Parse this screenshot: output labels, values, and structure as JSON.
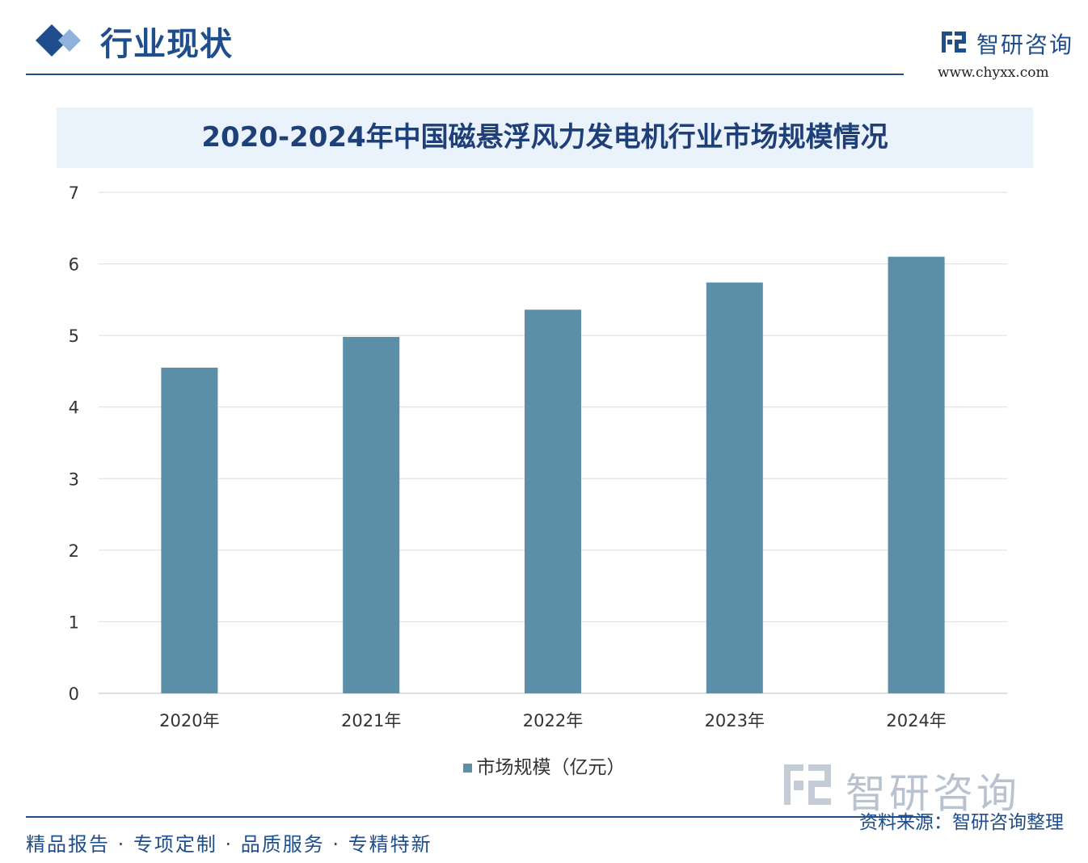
{
  "header": {
    "section_title": "行业现状",
    "brand_name": "智研咨询",
    "brand_url": "www.chyxx.com"
  },
  "chart_data": {
    "type": "bar",
    "title": "2020-2024年中国磁悬浮风力发电机行业市场规模情况",
    "categories": [
      "2020年",
      "2021年",
      "2022年",
      "2023年",
      "2024年"
    ],
    "series": [
      {
        "name": "市场规模（亿元）",
        "values": [
          4.55,
          4.98,
          5.36,
          5.74,
          6.1
        ],
        "color": "#5b8fa8"
      }
    ],
    "ylim": [
      0,
      7
    ],
    "yticks": [
      "0",
      "1",
      "2",
      "3",
      "4",
      "5",
      "6",
      "7"
    ],
    "grid": true,
    "legend_position": "bottom"
  },
  "watermark": {
    "text": "智研咨询"
  },
  "footer": {
    "source": "资料来源：智研咨询整理",
    "tagline": "精品报告 · 专项定制 · 品质服务 · 专精特新"
  },
  "colors": {
    "accent": "#1f4e8c",
    "bar": "#5b8fa8",
    "banner": "#eaf2fb"
  }
}
